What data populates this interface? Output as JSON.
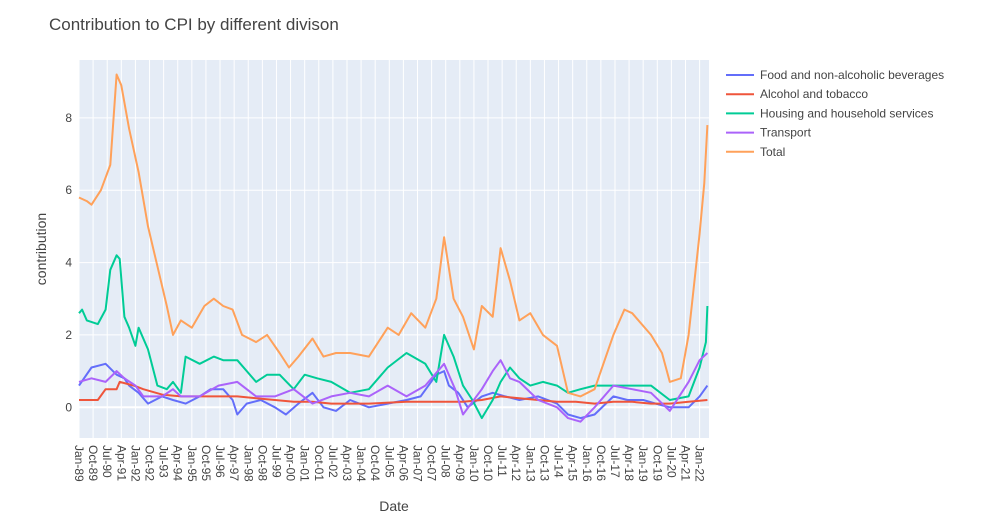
{
  "chart_data": {
    "type": "line",
    "title": "Contribution to CPI by different divison",
    "xlabel": "Date",
    "ylabel": "contribution",
    "grid": true,
    "legend_position": "top-right",
    "x_start": "1989-01",
    "x_end": "2022-06",
    "xlim": [
      "1989-01",
      "2022-07"
    ],
    "ylim": [
      -0.85,
      9.6
    ],
    "y_ticks": [
      0,
      2,
      4,
      6,
      8
    ],
    "x_ticks": [
      "Jan-89",
      "Oct-89",
      "Jul-90",
      "Apr-91",
      "Jan-92",
      "Oct-92",
      "Jul-93",
      "Apr-94",
      "Jan-95",
      "Oct-95",
      "Jul-96",
      "Apr-97",
      "Jan-98",
      "Oct-98",
      "Jul-99",
      "Apr-00",
      "Jan-01",
      "Oct-01",
      "Jul-02",
      "Apr-03",
      "Jan-04",
      "Oct-04",
      "Jul-05",
      "Apr-06",
      "Jan-07",
      "Oct-07",
      "Jul-08",
      "Apr-09",
      "Jan-10",
      "Oct-10",
      "Jul-11",
      "Apr-12",
      "Jan-13",
      "Oct-13",
      "Jul-14",
      "Apr-15",
      "Jan-16",
      "Oct-16",
      "Jul-17",
      "Apr-18",
      "Jan-19",
      "Oct-19",
      "Jul-20",
      "Apr-21",
      "Jan-22"
    ],
    "series": [
      {
        "name": "Food and non-alcoholic beverages",
        "color": "#636efa",
        "points": [
          [
            "1989-01",
            0.6
          ],
          [
            "1989-09",
            1.1
          ],
          [
            "1990-06",
            1.2
          ],
          [
            "1991-01",
            0.9
          ],
          [
            "1991-06",
            0.8
          ],
          [
            "1991-09",
            0.6
          ],
          [
            "1992-03",
            0.4
          ],
          [
            "1992-09",
            0.1
          ],
          [
            "1993-06",
            0.3
          ],
          [
            "1994-01",
            0.2
          ],
          [
            "1994-09",
            0.1
          ],
          [
            "1995-06",
            0.3
          ],
          [
            "1996-01",
            0.5
          ],
          [
            "1996-09",
            0.5
          ],
          [
            "1997-03",
            0.2
          ],
          [
            "1997-06",
            -0.2
          ],
          [
            "1997-12",
            0.1
          ],
          [
            "1998-09",
            0.2
          ],
          [
            "1999-06",
            0.0
          ],
          [
            "2000-01",
            -0.2
          ],
          [
            "2000-09",
            0.1
          ],
          [
            "2001-06",
            0.4
          ],
          [
            "2002-01",
            0.0
          ],
          [
            "2002-09",
            -0.1
          ],
          [
            "2003-06",
            0.2
          ],
          [
            "2004-06",
            0.0
          ],
          [
            "2005-06",
            0.1
          ],
          [
            "2006-06",
            0.2
          ],
          [
            "2007-03",
            0.3
          ],
          [
            "2008-01",
            0.9
          ],
          [
            "2008-06",
            1.0
          ],
          [
            "2008-09",
            0.6
          ],
          [
            "2009-03",
            0.4
          ],
          [
            "2009-09",
            0.0
          ],
          [
            "2010-06",
            0.3
          ],
          [
            "2011-01",
            0.4
          ],
          [
            "2011-09",
            0.3
          ],
          [
            "2012-06",
            0.2
          ],
          [
            "2013-06",
            0.3
          ],
          [
            "2014-06",
            0.1
          ],
          [
            "2015-01",
            -0.2
          ],
          [
            "2015-09",
            -0.3
          ],
          [
            "2016-06",
            -0.2
          ],
          [
            "2017-06",
            0.3
          ],
          [
            "2018-03",
            0.2
          ],
          [
            "2019-01",
            0.2
          ],
          [
            "2019-09",
            0.1
          ],
          [
            "2020-06",
            0.0
          ],
          [
            "2021-06",
            0.0
          ],
          [
            "2022-01",
            0.3
          ],
          [
            "2022-06",
            0.6
          ]
        ]
      },
      {
        "name": "Alcohol and tobacco",
        "color": "#ef553b",
        "points": [
          [
            "1989-01",
            0.2
          ],
          [
            "1990-01",
            0.2
          ],
          [
            "1990-06",
            0.5
          ],
          [
            "1991-01",
            0.5
          ],
          [
            "1991-03",
            0.7
          ],
          [
            "1991-12",
            0.6
          ],
          [
            "1992-06",
            0.5
          ],
          [
            "1993-06",
            0.35
          ],
          [
            "1994-06",
            0.3
          ],
          [
            "1995-06",
            0.3
          ],
          [
            "1996-06",
            0.3
          ],
          [
            "1997-06",
            0.3
          ],
          [
            "1998-06",
            0.25
          ],
          [
            "1999-06",
            0.2
          ],
          [
            "2000-06",
            0.15
          ],
          [
            "2001-06",
            0.15
          ],
          [
            "2002-06",
            0.1
          ],
          [
            "2004-06",
            0.1
          ],
          [
            "2006-06",
            0.15
          ],
          [
            "2008-06",
            0.15
          ],
          [
            "2009-06",
            0.15
          ],
          [
            "2010-06",
            0.2
          ],
          [
            "2011-06",
            0.3
          ],
          [
            "2012-06",
            0.25
          ],
          [
            "2013-06",
            0.2
          ],
          [
            "2014-06",
            0.15
          ],
          [
            "2015-06",
            0.15
          ],
          [
            "2016-06",
            0.1
          ],
          [
            "2017-06",
            0.15
          ],
          [
            "2018-06",
            0.15
          ],
          [
            "2019-06",
            0.1
          ],
          [
            "2020-06",
            0.1
          ],
          [
            "2021-06",
            0.15
          ],
          [
            "2022-06",
            0.2
          ]
        ]
      },
      {
        "name": "Housing and household services",
        "color": "#00cc96",
        "points": [
          [
            "1989-01",
            2.6
          ],
          [
            "1989-03",
            2.7
          ],
          [
            "1989-06",
            2.4
          ],
          [
            "1990-01",
            2.3
          ],
          [
            "1990-06",
            2.7
          ],
          [
            "1990-09",
            3.8
          ],
          [
            "1991-01",
            4.2
          ],
          [
            "1991-03",
            4.1
          ],
          [
            "1991-06",
            2.5
          ],
          [
            "1991-09",
            2.2
          ],
          [
            "1992-01",
            1.7
          ],
          [
            "1992-03",
            2.2
          ],
          [
            "1992-09",
            1.6
          ],
          [
            "1993-03",
            0.6
          ],
          [
            "1993-09",
            0.5
          ],
          [
            "1994-01",
            0.7
          ],
          [
            "1994-06",
            0.4
          ],
          [
            "1994-09",
            1.4
          ],
          [
            "1995-06",
            1.2
          ],
          [
            "1996-03",
            1.4
          ],
          [
            "1996-09",
            1.3
          ],
          [
            "1997-06",
            1.3
          ],
          [
            "1998-06",
            0.7
          ],
          [
            "1999-01",
            0.9
          ],
          [
            "1999-09",
            0.9
          ],
          [
            "2000-06",
            0.5
          ],
          [
            "2001-01",
            0.9
          ],
          [
            "2001-09",
            0.8
          ],
          [
            "2002-06",
            0.7
          ],
          [
            "2003-06",
            0.4
          ],
          [
            "2004-06",
            0.5
          ],
          [
            "2005-06",
            1.1
          ],
          [
            "2006-06",
            1.5
          ],
          [
            "2007-06",
            1.2
          ],
          [
            "2008-01",
            0.7
          ],
          [
            "2008-06",
            2.0
          ],
          [
            "2008-12",
            1.4
          ],
          [
            "2009-06",
            0.6
          ],
          [
            "2009-12",
            0.2
          ],
          [
            "2010-06",
            -0.3
          ],
          [
            "2011-01",
            0.2
          ],
          [
            "2011-06",
            0.7
          ],
          [
            "2011-12",
            1.1
          ],
          [
            "2012-06",
            0.8
          ],
          [
            "2013-01",
            0.6
          ],
          [
            "2013-09",
            0.7
          ],
          [
            "2014-06",
            0.6
          ],
          [
            "2015-01",
            0.4
          ],
          [
            "2015-09",
            0.5
          ],
          [
            "2016-06",
            0.6
          ],
          [
            "2017-06",
            0.6
          ],
          [
            "2018-06",
            0.6
          ],
          [
            "2019-06",
            0.6
          ],
          [
            "2020-06",
            0.2
          ],
          [
            "2021-06",
            0.3
          ],
          [
            "2022-01",
            1.1
          ],
          [
            "2022-05",
            1.8
          ],
          [
            "2022-06",
            2.8
          ]
        ]
      },
      {
        "name": "Transport",
        "color": "#ab63fa",
        "points": [
          [
            "1989-01",
            0.7
          ],
          [
            "1989-09",
            0.8
          ],
          [
            "1990-06",
            0.7
          ],
          [
            "1991-01",
            1.0
          ],
          [
            "1991-06",
            0.8
          ],
          [
            "1992-01",
            0.6
          ],
          [
            "1992-06",
            0.3
          ],
          [
            "1993-06",
            0.3
          ],
          [
            "1994-01",
            0.5
          ],
          [
            "1994-06",
            0.3
          ],
          [
            "1995-06",
            0.3
          ],
          [
            "1996-06",
            0.6
          ],
          [
            "1997-06",
            0.7
          ],
          [
            "1998-06",
            0.3
          ],
          [
            "1999-06",
            0.3
          ],
          [
            "2000-06",
            0.5
          ],
          [
            "2001-06",
            0.1
          ],
          [
            "2002-06",
            0.3
          ],
          [
            "2003-06",
            0.4
          ],
          [
            "2004-06",
            0.3
          ],
          [
            "2005-06",
            0.6
          ],
          [
            "2006-06",
            0.3
          ],
          [
            "2007-06",
            0.6
          ],
          [
            "2008-06",
            1.2
          ],
          [
            "2009-01",
            0.5
          ],
          [
            "2009-06",
            -0.2
          ],
          [
            "2010-06",
            0.5
          ],
          [
            "2011-01",
            1.0
          ],
          [
            "2011-06",
            1.3
          ],
          [
            "2011-12",
            0.8
          ],
          [
            "2012-06",
            0.7
          ],
          [
            "2013-06",
            0.2
          ],
          [
            "2014-06",
            0.0
          ],
          [
            "2015-01",
            -0.3
          ],
          [
            "2015-09",
            -0.4
          ],
          [
            "2016-06",
            0.0
          ],
          [
            "2017-06",
            0.6
          ],
          [
            "2018-06",
            0.5
          ],
          [
            "2019-06",
            0.4
          ],
          [
            "2020-06",
            -0.1
          ],
          [
            "2021-06",
            0.7
          ],
          [
            "2022-01",
            1.3
          ],
          [
            "2022-06",
            1.5
          ]
        ]
      },
      {
        "name": "Total",
        "color": "#ffa15a",
        "points": [
          [
            "1989-01",
            5.8
          ],
          [
            "1989-06",
            5.7
          ],
          [
            "1989-09",
            5.6
          ],
          [
            "1990-03",
            6.0
          ],
          [
            "1990-09",
            6.7
          ],
          [
            "1991-01",
            9.2
          ],
          [
            "1991-04",
            8.9
          ],
          [
            "1991-09",
            7.7
          ],
          [
            "1992-03",
            6.5
          ],
          [
            "1992-09",
            5.0
          ],
          [
            "1993-03",
            3.9
          ],
          [
            "1993-09",
            2.8
          ],
          [
            "1994-01",
            2.0
          ],
          [
            "1994-06",
            2.4
          ],
          [
            "1995-01",
            2.2
          ],
          [
            "1995-09",
            2.8
          ],
          [
            "1996-03",
            3.0
          ],
          [
            "1996-09",
            2.8
          ],
          [
            "1997-03",
            2.7
          ],
          [
            "1997-09",
            2.0
          ],
          [
            "1998-06",
            1.8
          ],
          [
            "1999-01",
            2.0
          ],
          [
            "1999-09",
            1.5
          ],
          [
            "2000-03",
            1.1
          ],
          [
            "2000-09",
            1.4
          ],
          [
            "2001-06",
            1.9
          ],
          [
            "2002-01",
            1.4
          ],
          [
            "2002-09",
            1.5
          ],
          [
            "2003-06",
            1.5
          ],
          [
            "2004-06",
            1.4
          ],
          [
            "2005-06",
            2.2
          ],
          [
            "2006-01",
            2.0
          ],
          [
            "2006-09",
            2.6
          ],
          [
            "2007-06",
            2.2
          ],
          [
            "2008-01",
            3.0
          ],
          [
            "2008-06",
            4.7
          ],
          [
            "2008-12",
            3.0
          ],
          [
            "2009-06",
            2.5
          ],
          [
            "2010-01",
            1.6
          ],
          [
            "2010-06",
            2.8
          ],
          [
            "2011-01",
            2.5
          ],
          [
            "2011-06",
            4.4
          ],
          [
            "2011-12",
            3.5
          ],
          [
            "2012-06",
            2.4
          ],
          [
            "2013-01",
            2.6
          ],
          [
            "2013-09",
            2.0
          ],
          [
            "2014-06",
            1.7
          ],
          [
            "2015-01",
            0.4
          ],
          [
            "2015-09",
            0.3
          ],
          [
            "2016-06",
            0.5
          ],
          [
            "2017-06",
            2.0
          ],
          [
            "2018-01",
            2.7
          ],
          [
            "2018-06",
            2.6
          ],
          [
            "2019-06",
            2.0
          ],
          [
            "2020-01",
            1.5
          ],
          [
            "2020-06",
            0.7
          ],
          [
            "2021-01",
            0.8
          ],
          [
            "2021-06",
            2.0
          ],
          [
            "2022-01",
            4.8
          ],
          [
            "2022-04",
            6.2
          ],
          [
            "2022-06",
            7.8
          ]
        ]
      }
    ]
  }
}
